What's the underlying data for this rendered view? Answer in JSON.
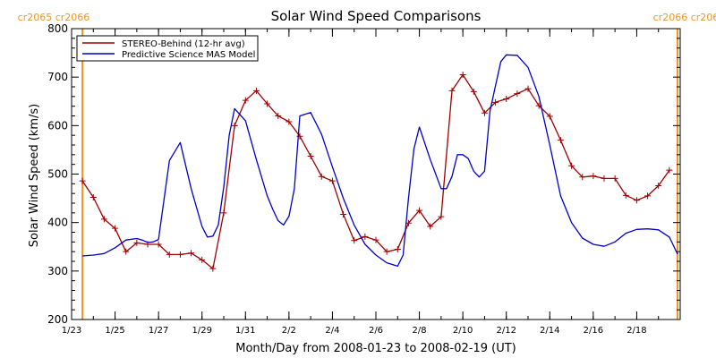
{
  "chart_data": {
    "type": "line",
    "title": "Solar Wind Speed Comparisons",
    "xlabel": "Month/Day from 2008-01-23 to 2008-02-19 (UT)",
    "ylabel": "Solar Wind Speed (km/s)",
    "xlim": [
      "2008-01-23",
      "2008-02-20"
    ],
    "ylim": [
      200,
      800
    ],
    "x_tick_labels": [
      "1/23",
      "1/25",
      "1/27",
      "1/29",
      "1/31",
      "2/2",
      "2/4",
      "2/6",
      "2/8",
      "2/10",
      "2/12",
      "2/14",
      "2/16",
      "2/18"
    ],
    "x_tick_dates": [
      "2008-01-23",
      "2008-01-25",
      "2008-01-27",
      "2008-01-29",
      "2008-01-31",
      "2008-02-02",
      "2008-02-04",
      "2008-02-06",
      "2008-02-08",
      "2008-02-10",
      "2008-02-12",
      "2008-02-14",
      "2008-02-16",
      "2008-02-18"
    ],
    "y_ticks": [
      200,
      300,
      400,
      500,
      600,
      700,
      800
    ],
    "legend_position": "top-left",
    "carrington": [
      {
        "label": "cr2065 cr2066",
        "date": "2008-01-23T12:00",
        "color": "#f0961e"
      },
      {
        "label": "cr2066 cr2067",
        "date": "2008-02-19T21:00",
        "color": "#f0961e"
      }
    ],
    "series": [
      {
        "name": "STEREO-Behind (12-hr avg)",
        "color": "#a00000",
        "marker": "plus",
        "x": [
          "2008-01-23T12:00",
          "2008-01-24T00:00",
          "2008-01-24T12:00",
          "2008-01-25T00:00",
          "2008-01-25T12:00",
          "2008-01-26T00:00",
          "2008-01-26T12:00",
          "2008-01-27T00:00",
          "2008-01-27T12:00",
          "2008-01-28T00:00",
          "2008-01-28T12:00",
          "2008-01-29T00:00",
          "2008-01-29T12:00",
          "2008-01-30T00:00",
          "2008-01-30T12:00",
          "2008-01-31T00:00",
          "2008-01-31T12:00",
          "2008-02-01T00:00",
          "2008-02-01T12:00",
          "2008-02-02T00:00",
          "2008-02-02T12:00",
          "2008-02-03T00:00",
          "2008-02-03T12:00",
          "2008-02-04T00:00",
          "2008-02-04T12:00",
          "2008-02-05T00:00",
          "2008-02-05T12:00",
          "2008-02-06T00:00",
          "2008-02-06T12:00",
          "2008-02-07T00:00",
          "2008-02-07T12:00",
          "2008-02-08T00:00",
          "2008-02-08T12:00",
          "2008-02-09T00:00",
          "2008-02-09T12:00",
          "2008-02-10T00:00",
          "2008-02-10T12:00",
          "2008-02-11T00:00",
          "2008-02-11T12:00",
          "2008-02-12T00:00",
          "2008-02-12T12:00",
          "2008-02-13T00:00",
          "2008-02-13T12:00",
          "2008-02-14T00:00",
          "2008-02-14T12:00",
          "2008-02-15T00:00",
          "2008-02-15T12:00",
          "2008-02-16T00:00",
          "2008-02-16T12:00",
          "2008-02-17T00:00",
          "2008-02-17T12:00",
          "2008-02-18T00:00",
          "2008-02-18T12:00",
          "2008-02-19T00:00",
          "2008-02-19T12:00"
        ],
        "y": [
          486,
          452,
          407,
          388,
          340,
          358,
          355,
          355,
          334,
          334,
          337,
          323,
          305,
          420,
          600,
          652,
          672,
          645,
          620,
          608,
          578,
          537,
          495,
          486,
          417,
          363,
          371,
          364,
          340,
          345,
          399,
          425,
          392,
          412,
          672,
          705,
          670,
          626,
          648,
          655,
          666,
          676,
          641,
          619,
          570,
          517,
          494,
          496,
          491,
          491,
          456,
          446,
          455,
          476,
          508
        ]
      },
      {
        "name": "Predictive Science MAS Model",
        "color": "#0000c8",
        "marker": "none",
        "x": [
          "2008-01-23T12:00",
          "2008-01-24T00:00",
          "2008-01-24T12:00",
          "2008-01-25T00:00",
          "2008-01-25T12:00",
          "2008-01-26T00:00",
          "2008-01-26T06:00",
          "2008-01-26T12:00",
          "2008-01-26T18:00",
          "2008-01-27T00:00",
          "2008-01-27T12:00",
          "2008-01-28T00:00",
          "2008-01-28T12:00",
          "2008-01-29T00:00",
          "2008-01-29T06:00",
          "2008-01-29T12:00",
          "2008-01-29T18:00",
          "2008-01-30T00:00",
          "2008-01-30T06:00",
          "2008-01-30T12:00",
          "2008-01-31T00:00",
          "2008-01-31T12:00",
          "2008-02-01T00:00",
          "2008-02-01T06:00",
          "2008-02-01T12:00",
          "2008-02-01T18:00",
          "2008-02-02T00:00",
          "2008-02-02T06:00",
          "2008-02-02T12:00",
          "2008-02-03T00:00",
          "2008-02-03T12:00",
          "2008-02-04T00:00",
          "2008-02-04T12:00",
          "2008-02-05T00:00",
          "2008-02-05T12:00",
          "2008-02-06T00:00",
          "2008-02-06T12:00",
          "2008-02-07T00:00",
          "2008-02-07T06:00",
          "2008-02-07T12:00",
          "2008-02-07T18:00",
          "2008-02-08T00:00",
          "2008-02-08T12:00",
          "2008-02-09T00:00",
          "2008-02-09T06:00",
          "2008-02-09T12:00",
          "2008-02-09T18:00",
          "2008-02-10T00:00",
          "2008-02-10T06:00",
          "2008-02-10T12:00",
          "2008-02-10T18:00",
          "2008-02-11T00:00",
          "2008-02-11T06:00",
          "2008-02-11T12:00",
          "2008-02-11T18:00",
          "2008-02-12T00:00",
          "2008-02-12T12:00",
          "2008-02-13T00:00",
          "2008-02-13T12:00",
          "2008-02-14T00:00",
          "2008-02-14T12:00",
          "2008-02-15T00:00",
          "2008-02-15T12:00",
          "2008-02-16T00:00",
          "2008-02-16T12:00",
          "2008-02-17T00:00",
          "2008-02-17T12:00",
          "2008-02-18T00:00",
          "2008-02-18T12:00",
          "2008-02-19T00:00",
          "2008-02-19T12:00",
          "2008-02-19T21:00"
        ],
        "y": [
          331,
          333,
          336,
          348,
          364,
          367,
          364,
          359,
          360,
          365,
          528,
          565,
          470,
          392,
          370,
          372,
          395,
          473,
          580,
          635,
          610,
          530,
          455,
          428,
          404,
          395,
          413,
          470,
          620,
          627,
          582,
          515,
          450,
          395,
          355,
          333,
          317,
          310,
          333,
          450,
          552,
          597,
          530,
          470,
          470,
          495,
          540,
          540,
          532,
          506,
          494,
          506,
          630,
          682,
          732,
          746,
          745,
          720,
          660,
          560,
          455,
          400,
          368,
          355,
          351,
          360,
          378,
          386,
          387,
          385,
          370,
          335
        ]
      }
    ]
  }
}
